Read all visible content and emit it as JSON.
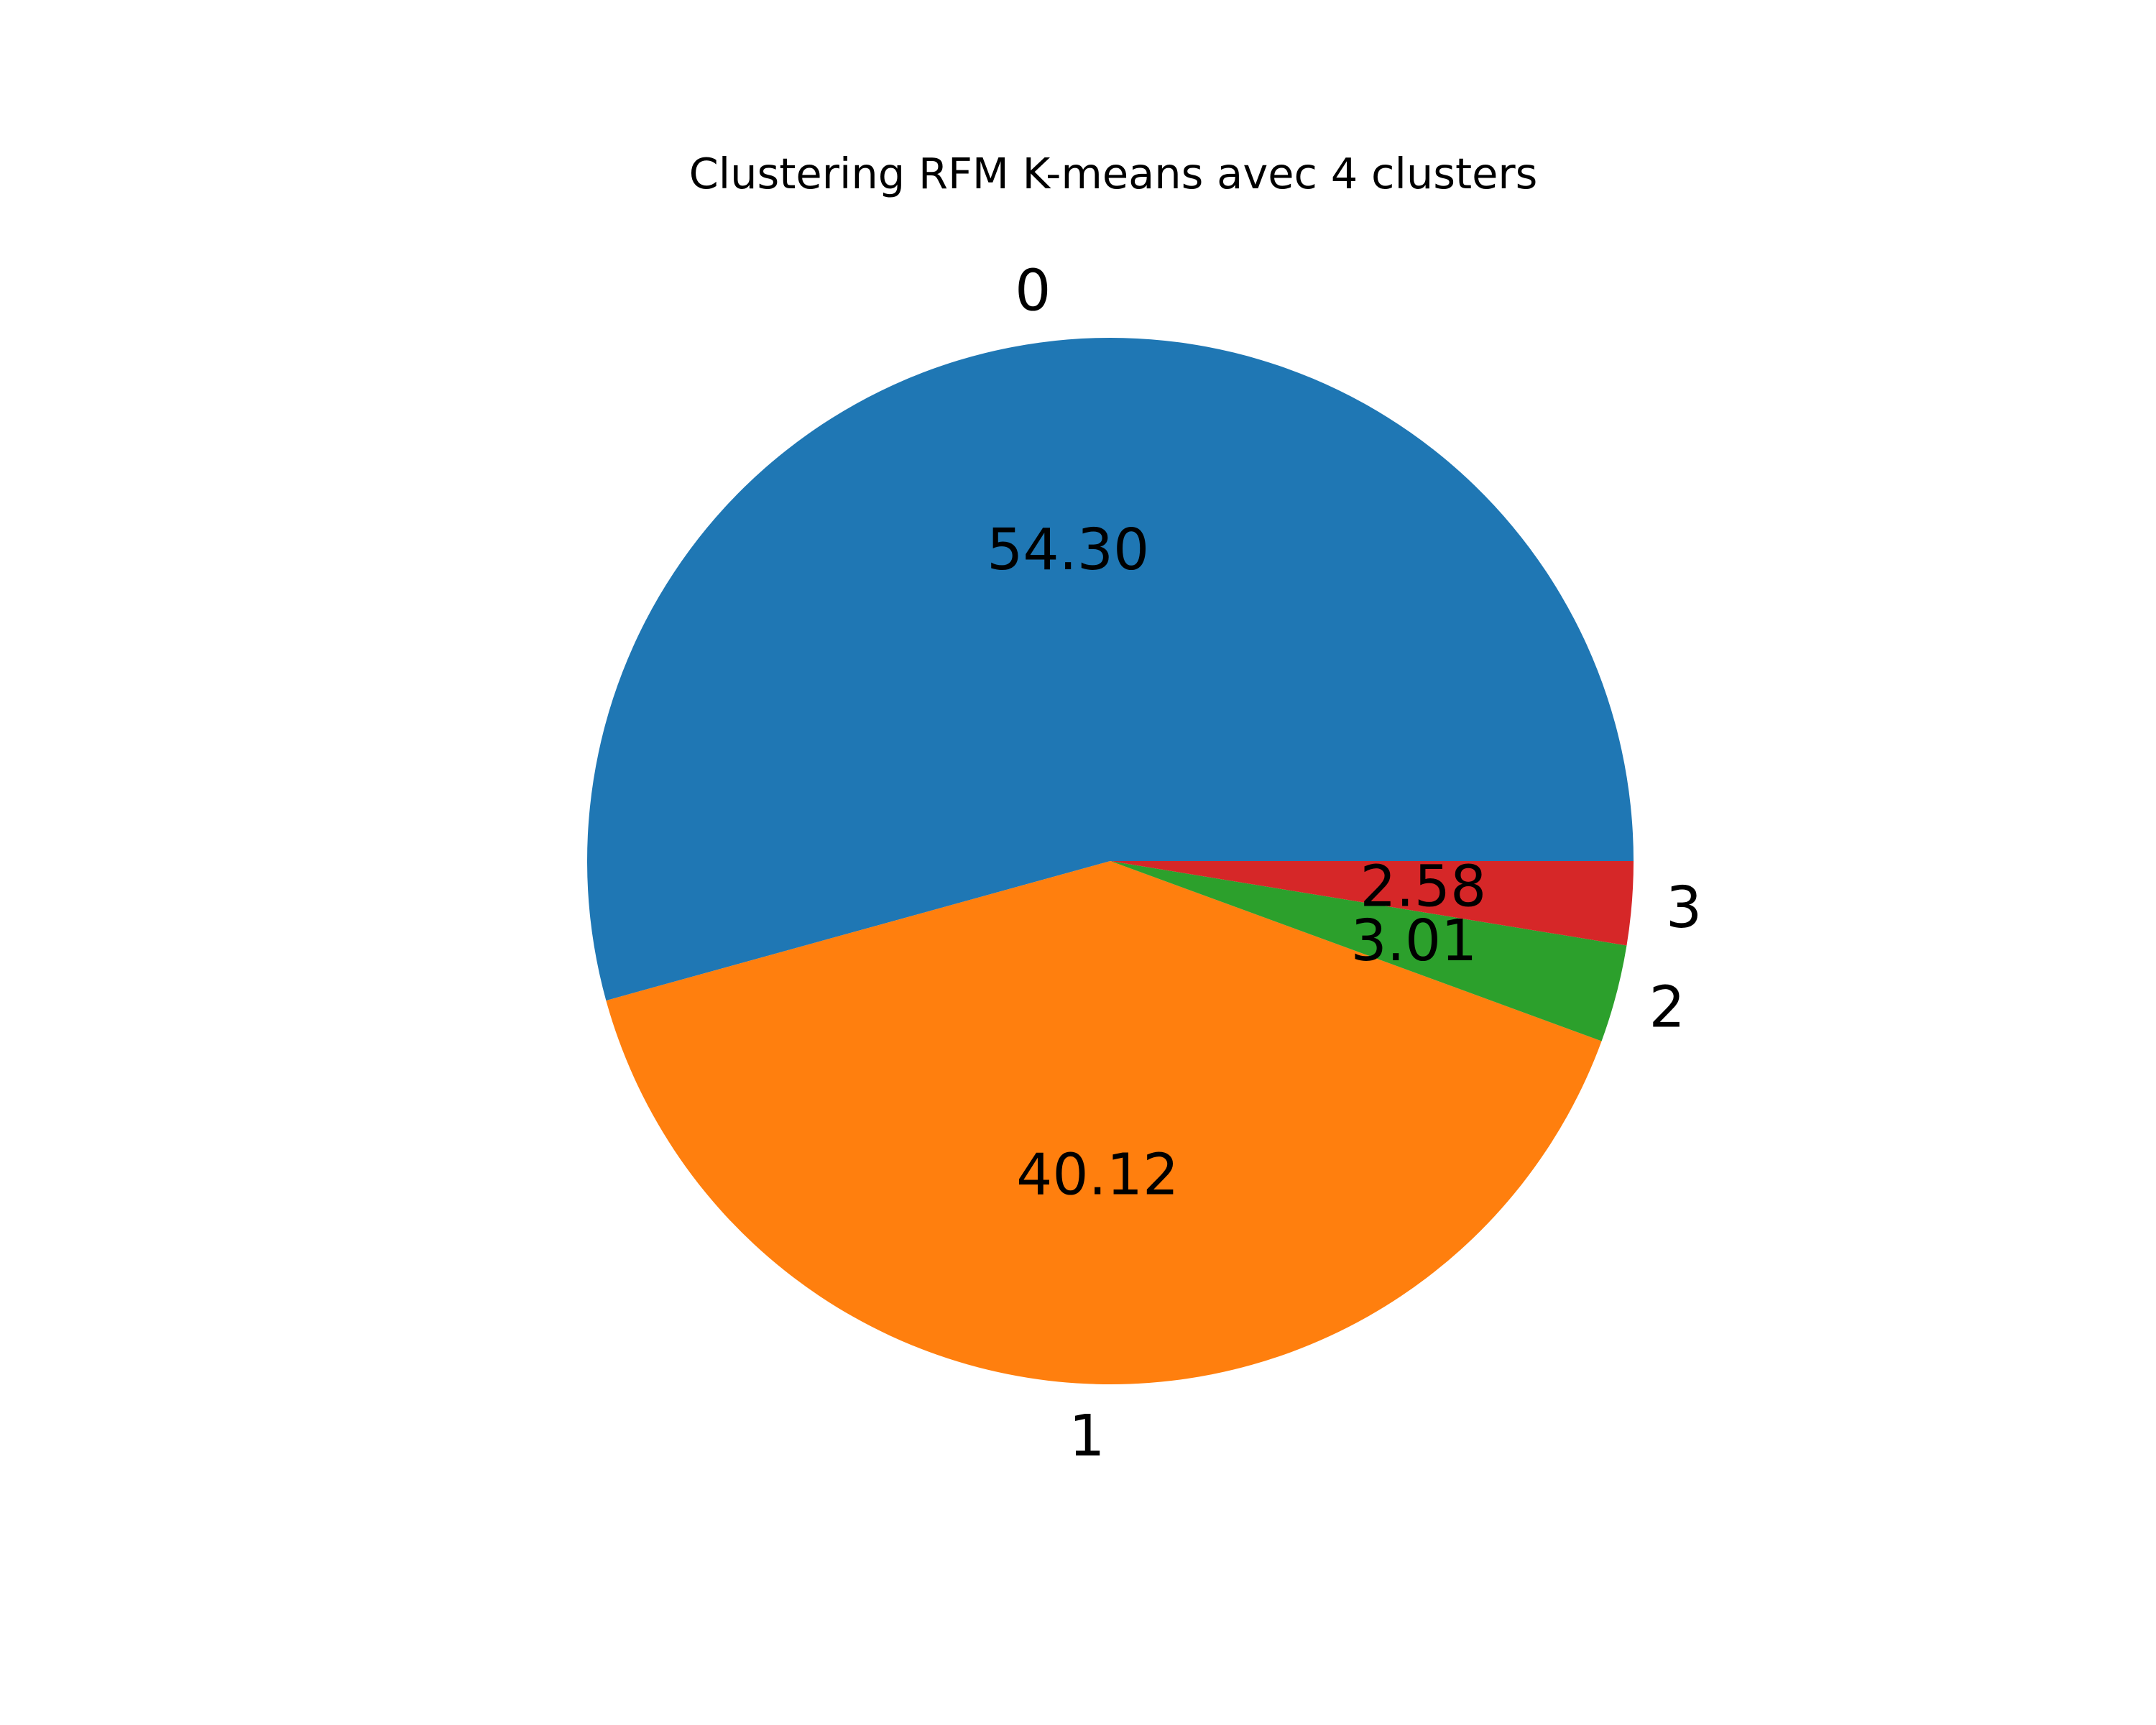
{
  "chart_data": {
    "type": "pie",
    "title": "Clustering RFM K-means avec 4 clusters",
    "slices": [
      {
        "label": "0",
        "value": 54.3,
        "value_text": "54.30",
        "color": "#1f77b4"
      },
      {
        "label": "1",
        "value": 40.12,
        "value_text": "40.12",
        "color": "#ff7f0e"
      },
      {
        "label": "2",
        "value": 3.01,
        "value_text": "3.01",
        "color": "#2ca02c"
      },
      {
        "label": "3",
        "value": 2.58,
        "value_text": "2.58",
        "color": "#d62728"
      }
    ],
    "start_angle_deg": 0,
    "direction": "counterclockwise",
    "legend": false
  }
}
